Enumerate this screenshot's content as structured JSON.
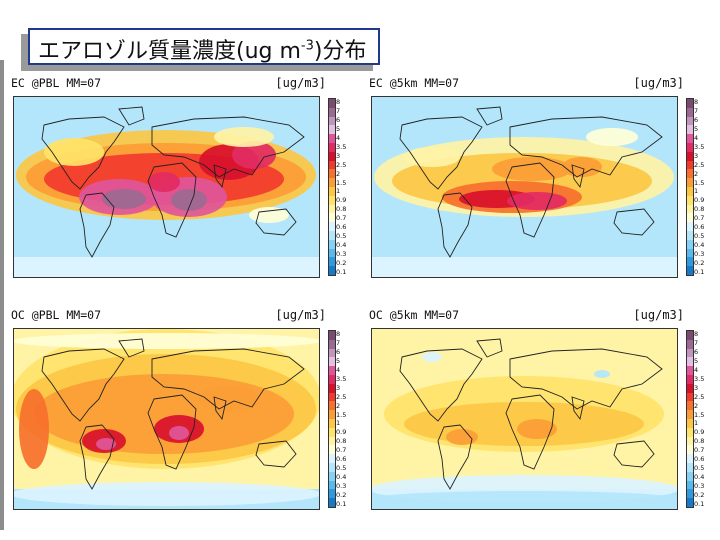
{
  "slide": {
    "title_main": "エアロゾル質量濃度(ug m",
    "title_sup": "-3",
    "title_tail": ")分布"
  },
  "colorbar_levels": [
    "8",
    "7",
    "6",
    "5",
    "4",
    "3.5",
    "3",
    "2.5",
    "2",
    "1.5",
    "1",
    "0.9",
    "0.8",
    "0.7",
    "0.6",
    "0.5",
    "0.4",
    "0.3",
    "0.2",
    "0.1"
  ],
  "colorbar_colors": [
    "#7a4a6f",
    "#9b6a93",
    "#c096bf",
    "#e3c0e0",
    "#e0569a",
    "#e22b62",
    "#d8102c",
    "#f23a2c",
    "#f7702e",
    "#fb9d36",
    "#fcc744",
    "#ffe36a",
    "#fff3a6",
    "#ffffd7",
    "#dbf4ff",
    "#b4e6fb",
    "#85d2f4",
    "#57b9ec",
    "#2e9ae0",
    "#1679c9"
  ],
  "chart_data": [
    {
      "type": "heatmap",
      "title": "EC @PBL MM=07",
      "unit": "[ug/m3]",
      "levels": [
        "8",
        "7",
        "6",
        "5",
        "4",
        "3.5",
        "3",
        "2.5",
        "2",
        "1.5",
        "1",
        "0.9",
        "0.8",
        "0.7",
        "0.6",
        "0.5",
        "0.4",
        "0.3",
        "0.2",
        "0.1"
      ],
      "description_regions": {
        "high": [
          "South America",
          "Central Africa",
          "South Asia",
          "East Asia"
        ],
        "moderate": [
          "Northern Hemisphere mid-latitudes"
        ]
      }
    },
    {
      "type": "heatmap",
      "title": "EC @5km MM=07",
      "unit": "[ug/m3]",
      "levels": [
        "8",
        "7",
        "6",
        "5",
        "4",
        "3.5",
        "3",
        "2.5",
        "2",
        "1.5",
        "1",
        "0.9",
        "0.8",
        "0.7",
        "0.6",
        "0.5",
        "0.4",
        "0.3",
        "0.2",
        "0.1"
      ],
      "description_regions": {
        "high": [
          "South America",
          "Southern Africa"
        ],
        "moderate": [
          "Northern Africa",
          "South Asia"
        ]
      }
    },
    {
      "type": "heatmap",
      "title": "OC @PBL MM=07",
      "unit": "[ug/m3]",
      "levels": [
        "8",
        "7",
        "6",
        "5",
        "4",
        "3.5",
        "3",
        "2.5",
        "2",
        "1.5",
        "1",
        "0.9",
        "0.8",
        "0.7",
        "0.6",
        "0.5",
        "0.4",
        "0.3",
        "0.2",
        "0.1"
      ],
      "description_regions": {
        "high": [
          "South America",
          "Central Africa"
        ],
        "moderate": [
          "Global land areas"
        ]
      }
    },
    {
      "type": "heatmap",
      "title": "OC @5km MM=07",
      "unit": "[ug/m3]",
      "levels": [
        "8",
        "7",
        "6",
        "5",
        "4",
        "3.5",
        "3",
        "2.5",
        "2",
        "1.5",
        "1",
        "0.9",
        "0.8",
        "0.7",
        "0.6",
        "0.5",
        "0.4",
        "0.3",
        "0.2",
        "0.1"
      ],
      "description_regions": {
        "high": [
          "Central Africa",
          "South America"
        ],
        "moderate": [
          "Tropics"
        ]
      }
    }
  ],
  "panels": [
    {
      "label": "EC @PBL MM=07",
      "unit": "[ug/m3]"
    },
    {
      "label": "EC @5km MM=07",
      "unit": "[ug/m3]"
    },
    {
      "label": "OC @PBL MM=07",
      "unit": "[ug/m3]"
    },
    {
      "label": "OC @5km MM=07",
      "unit": "[ug/m3]"
    }
  ]
}
